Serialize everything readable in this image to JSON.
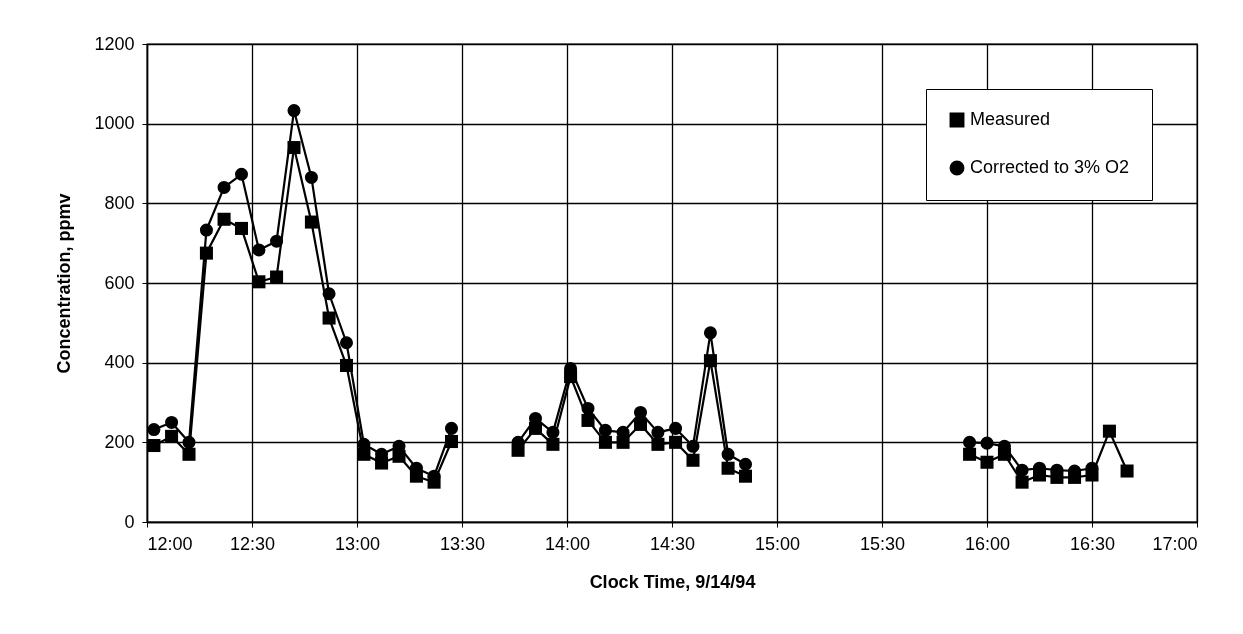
{
  "chart_data": {
    "type": "line",
    "xlabel": "Clock Time, 9/14/94",
    "ylabel": "Concentration, ppmv",
    "x": [
      12.033,
      12.117,
      12.2,
      12.283,
      12.367,
      12.45,
      12.533,
      12.617,
      12.7,
      12.783,
      12.867,
      12.95,
      13.033,
      13.117,
      13.2,
      13.283,
      13.367,
      13.45,
      13.6,
      13.767,
      13.85,
      13.933,
      14.017,
      14.1,
      14.183,
      14.267,
      14.35,
      14.433,
      14.517,
      14.6,
      14.683,
      14.767,
      14.85,
      15.4,
      15.917,
      16,
      16.083,
      16.167,
      16.25,
      16.333,
      16.417,
      16.5,
      16.583,
      16.667
    ],
    "series": [
      {
        "name": "Measured",
        "color": "#000000",
        "marker": "square",
        "values": [
          192,
          215,
          170,
          675,
          760,
          737,
          603,
          615,
          940,
          753,
          512,
          393,
          170,
          148,
          165,
          115,
          100,
          202,
          null,
          180,
          235,
          195,
          365,
          255,
          200,
          200,
          245,
          195,
          200,
          155,
          405,
          135,
          115,
          null,
          170,
          150,
          170,
          100,
          118,
          112,
          112,
          118,
          228,
          128
        ]
      },
      {
        "name": "Corrected to 3% O2",
        "color": "#000000",
        "marker": "circle",
        "values": [
          232,
          250,
          200,
          733,
          840,
          873,
          683,
          705,
          1033,
          865,
          573,
          450,
          195,
          170,
          190,
          135,
          115,
          235,
          null,
          200,
          260,
          225,
          385,
          285,
          230,
          225,
          275,
          225,
          235,
          190,
          475,
          170,
          145,
          null,
          200,
          198,
          190,
          130,
          135,
          130,
          128,
          135,
          null,
          null
        ]
      }
    ],
    "xlim": [
      12,
      17
    ],
    "xticks": [
      {
        "value": 12,
        "label": "12:00"
      },
      {
        "value": 12.5,
        "label": "12:30"
      },
      {
        "value": 13,
        "label": "13:00"
      },
      {
        "value": 13.5,
        "label": "13:30"
      },
      {
        "value": 14,
        "label": "14:00"
      },
      {
        "value": 14.5,
        "label": "14:30"
      },
      {
        "value": 15,
        "label": "15:00"
      },
      {
        "value": 15.5,
        "label": "15:30"
      },
      {
        "value": 16,
        "label": "16:00"
      },
      {
        "value": 16.5,
        "label": "16:30"
      },
      {
        "value": 17,
        "label": "17:00"
      }
    ],
    "ylim": [
      0,
      1200
    ],
    "yticks": [
      0,
      200,
      400,
      600,
      800,
      1000,
      1200
    ],
    "grid": true,
    "legend": "top right",
    "line_style": "solid"
  }
}
